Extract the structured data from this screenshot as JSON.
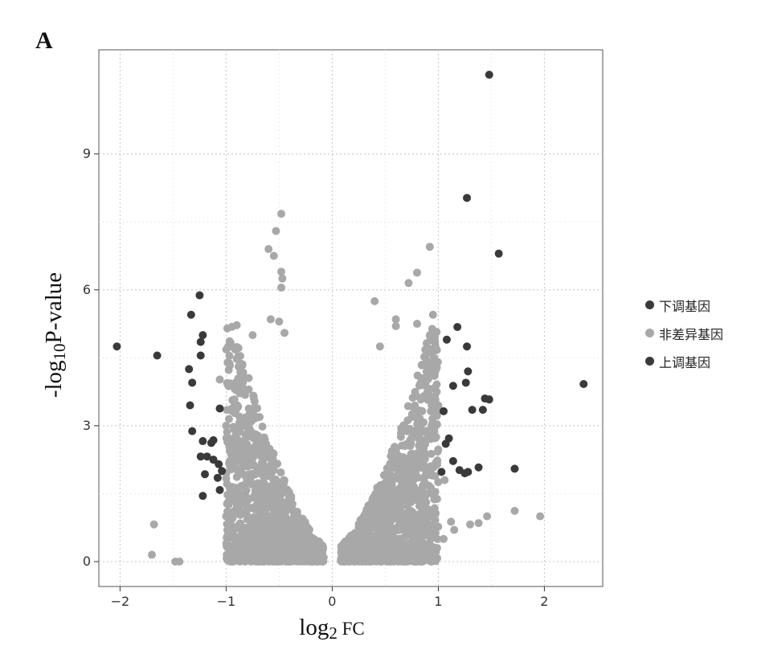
{
  "panel_label": "A",
  "chart_data": {
    "type": "scatter",
    "title": "",
    "xlabel": "log2 FC",
    "xlabel_main": "log",
    "xlabel_sub": "2",
    "xlabel_rest": " FC",
    "ylabel": "-log10 P-value",
    "ylabel_main": "-log",
    "ylabel_sub": "10",
    "ylabel_rest": "P-value",
    "xlim": [
      -2.2,
      2.55
    ],
    "ylim": [
      -0.55,
      11.3
    ],
    "xticks": [
      -2,
      -1,
      0,
      1,
      2
    ],
    "yticks": [
      0,
      3,
      6,
      9
    ],
    "grid": true,
    "legend_position": "right",
    "colors": {
      "down": "#3a3a3a",
      "nonsig": "#a8a8a8",
      "up": "#3a3a3a"
    },
    "legend": [
      {
        "key": "down",
        "label": "下调基因"
      },
      {
        "key": "nonsig",
        "label": "非差异基因"
      },
      {
        "key": "up",
        "label": "上调基因"
      }
    ],
    "series": [
      {
        "name": "下调基因",
        "key": "down",
        "points": [
          [
            -2.03,
            4.75
          ],
          [
            -1.65,
            4.55
          ],
          [
            -1.25,
            5.88
          ],
          [
            -1.33,
            5.45
          ],
          [
            -1.22,
            5.0
          ],
          [
            -1.24,
            4.85
          ],
          [
            -1.24,
            4.55
          ],
          [
            -1.35,
            4.25
          ],
          [
            -1.32,
            3.95
          ],
          [
            -1.34,
            3.45
          ],
          [
            -1.06,
            3.38
          ],
          [
            -1.32,
            2.88
          ],
          [
            -1.22,
            2.66
          ],
          [
            -1.12,
            2.68
          ],
          [
            -1.14,
            2.62
          ],
          [
            -1.24,
            2.32
          ],
          [
            -1.18,
            2.32
          ],
          [
            -1.12,
            2.25
          ],
          [
            -1.07,
            2.15
          ],
          [
            -1.04,
            2.0
          ],
          [
            -1.2,
            1.93
          ],
          [
            -1.08,
            1.85
          ],
          [
            -1.06,
            1.58
          ],
          [
            -1.22,
            1.45
          ]
        ]
      },
      {
        "name": "非差异基因",
        "key": "nonsig",
        "points": [
          [
            -0.48,
            7.68
          ],
          [
            -0.53,
            7.3
          ],
          [
            -0.6,
            6.9
          ],
          [
            -0.55,
            6.75
          ],
          [
            -0.48,
            6.4
          ],
          [
            -0.47,
            6.25
          ],
          [
            -0.48,
            6.05
          ],
          [
            -0.58,
            5.35
          ],
          [
            -0.5,
            5.3
          ],
          [
            -0.9,
            5.22
          ],
          [
            -0.45,
            5.05
          ],
          [
            -0.75,
            5.0
          ],
          [
            -0.95,
            4.75
          ],
          [
            -1.06,
            4.02
          ],
          [
            -1.0,
            3.0
          ],
          [
            -0.95,
            2.65
          ],
          [
            -0.93,
            2.05
          ],
          [
            -0.98,
            1.32
          ],
          [
            -1.0,
            1.0
          ],
          [
            -0.98,
            0.5
          ],
          [
            -0.95,
            0.15
          ],
          [
            -1.68,
            0.82
          ],
          [
            -1.7,
            0.15
          ],
          [
            -1.44,
            0.0
          ],
          [
            -1.48,
            0.0
          ],
          [
            0.4,
            5.75
          ],
          [
            0.72,
            6.15
          ],
          [
            0.8,
            6.38
          ],
          [
            0.92,
            6.95
          ],
          [
            0.95,
            5.45
          ],
          [
            0.6,
            5.35
          ],
          [
            0.6,
            5.2
          ],
          [
            0.8,
            5.25
          ],
          [
            0.92,
            5.0
          ],
          [
            0.95,
            4.62
          ],
          [
            0.45,
            4.75
          ],
          [
            1.0,
            3.45
          ],
          [
            0.98,
            2.75
          ],
          [
            1.12,
            0.88
          ],
          [
            1.05,
            0.5
          ],
          [
            1.15,
            0.7
          ],
          [
            1.3,
            0.82
          ],
          [
            1.38,
            0.85
          ],
          [
            1.46,
            1.0
          ],
          [
            1.72,
            1.12
          ],
          [
            1.96,
            1.0
          ],
          [
            1.06,
            1.8
          ],
          [
            0.98,
            2.2
          ]
        ]
      },
      {
        "name": "上调基因",
        "key": "up",
        "points": [
          [
            1.48,
            10.75
          ],
          [
            1.27,
            8.03
          ],
          [
            1.57,
            6.8
          ],
          [
            1.18,
            5.18
          ],
          [
            1.08,
            4.9
          ],
          [
            1.27,
            4.75
          ],
          [
            1.28,
            4.2
          ],
          [
            1.26,
            3.95
          ],
          [
            1.14,
            3.88
          ],
          [
            1.44,
            3.6
          ],
          [
            1.48,
            3.58
          ],
          [
            1.32,
            3.35
          ],
          [
            1.42,
            3.35
          ],
          [
            2.37,
            3.92
          ],
          [
            1.05,
            3.32
          ],
          [
            1.1,
            2.72
          ],
          [
            1.07,
            2.6
          ],
          [
            1.14,
            2.22
          ],
          [
            1.2,
            2.02
          ],
          [
            1.25,
            1.95
          ],
          [
            1.28,
            1.98
          ],
          [
            1.38,
            2.08
          ],
          [
            1.72,
            2.05
          ],
          [
            1.03,
            1.98
          ]
        ]
      }
    ]
  }
}
